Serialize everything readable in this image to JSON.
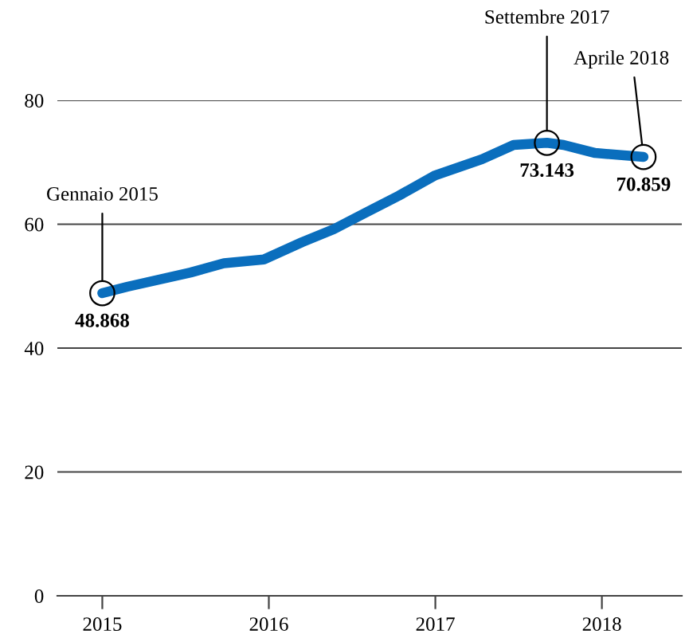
{
  "chart_data": {
    "type": "line",
    "x": [
      2015.0,
      2015.15,
      2015.53,
      2015.73,
      2015.97,
      2016.2,
      2016.39,
      2016.57,
      2016.78,
      2017.0,
      2017.28,
      2017.47,
      2017.67,
      2017.77,
      2017.96,
      2018.25
    ],
    "series": [
      {
        "color": "#0a6ebd",
        "values": [
          48.868,
          49.9,
          52.2,
          53.7,
          54.3,
          57.1,
          59.2,
          61.7,
          64.6,
          67.9,
          70.5,
          72.8,
          73.143,
          72.8,
          71.5,
          70.859
        ],
        "value_labels": [
          "48.868",
          null,
          null,
          null,
          null,
          null,
          null,
          null,
          null,
          null,
          null,
          null,
          "73.143",
          null,
          null,
          "70.859"
        ]
      }
    ],
    "annotations": [
      {
        "text": "Gennaio 2015",
        "x": 2015.0,
        "y": 48.868
      },
      {
        "text": "Settembre 2017",
        "x": 2017.67,
        "y": 73.143
      },
      {
        "text": "Aprile 2018",
        "x": 2018.25,
        "y": 70.859
      }
    ],
    "xlim": [
      2014.73,
      2018.48
    ],
    "xticks": [
      2015,
      2016,
      2017,
      2018
    ],
    "ylim": [
      0,
      80
    ],
    "yticks": [
      0,
      20,
      40,
      60,
      80
    ],
    "grid": "y",
    "marker": "none",
    "line_style": "solid",
    "legend": false
  }
}
